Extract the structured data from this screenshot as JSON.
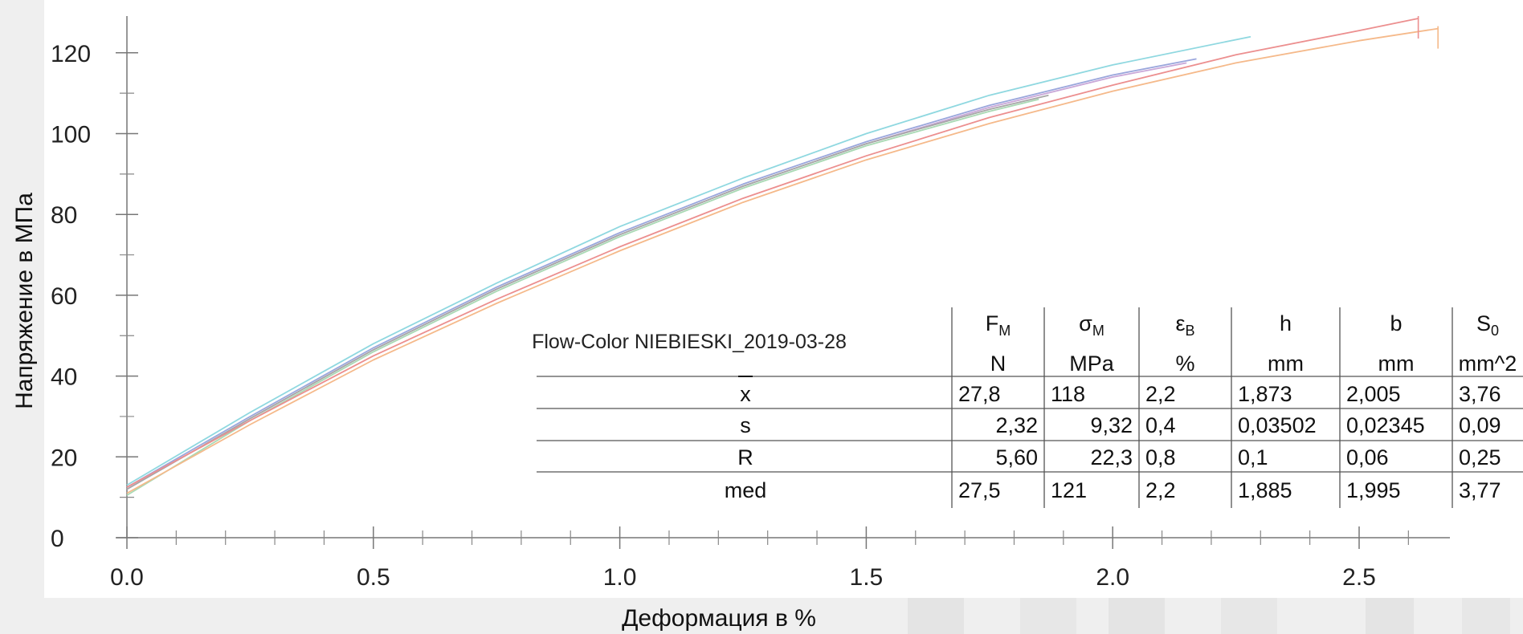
{
  "chart_data": {
    "type": "line",
    "xlabel": "Деформация в %",
    "ylabel": "Напряжение в МПа",
    "xlim": [
      0,
      2.6
    ],
    "ylim": [
      0,
      128
    ],
    "xticks": [
      0.0,
      0.5,
      1.0,
      1.5,
      2.0,
      2.5
    ],
    "xtick_labels": [
      "0.0",
      "0.5",
      "1.0",
      "1.5",
      "2.0",
      "2.5"
    ],
    "yticks": [
      0,
      20,
      40,
      60,
      80,
      100,
      120
    ],
    "ytick_labels": [
      "0",
      "20",
      "40",
      "60",
      "80",
      "100",
      "120"
    ],
    "grid": false,
    "legend": "none",
    "series": [
      {
        "color": "#8fd8e0",
        "x": [
          0,
          0.25,
          0.5,
          0.75,
          1.0,
          1.25,
          1.5,
          1.75,
          2.0,
          2.28
        ],
        "y": [
          13.0,
          31.0,
          48.0,
          63.0,
          77.0,
          89.0,
          100.0,
          109.5,
          117.0,
          124.0
        ]
      },
      {
        "color": "#9aa6dc",
        "x": [
          0,
          0.25,
          0.5,
          0.75,
          1.0,
          1.25,
          1.5,
          1.75,
          2.0,
          2.17
        ],
        "y": [
          12.5,
          30.0,
          47.0,
          62.0,
          75.5,
          87.5,
          98.0,
          107.0,
          114.5,
          118.5
        ]
      },
      {
        "color": "#c9a7d8",
        "x": [
          0,
          0.25,
          0.5,
          0.75,
          1.0,
          1.25,
          1.5,
          1.75,
          2.0,
          2.15
        ],
        "y": [
          12.0,
          29.5,
          46.5,
          61.5,
          75.0,
          87.0,
          97.5,
          106.5,
          114.0,
          117.5
        ]
      },
      {
        "color": "#a9d9b4",
        "x": [
          0,
          0.25,
          0.5,
          0.75,
          1.0,
          1.25,
          1.5,
          1.75,
          1.85
        ],
        "y": [
          10.5,
          29.0,
          46.0,
          61.0,
          74.5,
          86.5,
          97.0,
          105.5,
          108.5
        ]
      },
      {
        "color": "#a7a7a7",
        "x": [
          0,
          0.25,
          0.5,
          0.75,
          1.0,
          1.25,
          1.5,
          1.75,
          1.87
        ],
        "y": [
          12.0,
          29.5,
          46.5,
          61.5,
          75.0,
          87.0,
          97.5,
          106.0,
          109.5
        ]
      },
      {
        "color": "#ec8f8f",
        "x": [
          0,
          0.25,
          0.5,
          0.75,
          1.0,
          1.25,
          1.5,
          1.75,
          2.0,
          2.25,
          2.5,
          2.62
        ],
        "y": [
          12.5,
          29.0,
          45.0,
          59.0,
          72.0,
          84.0,
          94.5,
          104.0,
          112.0,
          119.5,
          125.5,
          128.5
        ]
      },
      {
        "color": "#f5b98a",
        "x": [
          0,
          0.25,
          0.5,
          0.75,
          1.0,
          1.25,
          1.5,
          1.75,
          2.0,
          2.25,
          2.5,
          2.66
        ],
        "y": [
          11.0,
          28.0,
          44.0,
          58.0,
          71.0,
          83.0,
          93.5,
          102.5,
          110.5,
          117.5,
          123.0,
          126.0
        ]
      }
    ]
  },
  "results_table": {
    "sample_name": "Flow-Color NIEBIESKI_2019-03-28",
    "columns": [
      {
        "symbol": "F",
        "sub": "M",
        "unit": "N"
      },
      {
        "symbol": "σ",
        "sub": "M",
        "unit": "MPa"
      },
      {
        "symbol": "ε",
        "sub": "B",
        "unit": "%"
      },
      {
        "symbol": "h",
        "sub": "",
        "unit": "mm"
      },
      {
        "symbol": "b",
        "sub": "",
        "unit": "mm"
      },
      {
        "symbol": "S",
        "sub": "0",
        "unit": "mm^2"
      }
    ],
    "rows": [
      {
        "label": "x",
        "overline": true,
        "values": [
          "27,8",
          "118",
          "2,2",
          "1,873",
          "2,005",
          "3,76"
        ]
      },
      {
        "label": "s",
        "overline": false,
        "values": [
          "2,32",
          "9,32",
          "0,4",
          "0,03502",
          "0,02345",
          "0,09"
        ]
      },
      {
        "label": "R",
        "overline": false,
        "values": [
          "5,60",
          "22,3",
          "0,8",
          "0,1",
          "0,06",
          "0,25"
        ]
      },
      {
        "label": "med",
        "overline": false,
        "values": [
          "27,5",
          "121",
          "2,2",
          "1,885",
          "1,995",
          "3,77"
        ]
      }
    ]
  }
}
